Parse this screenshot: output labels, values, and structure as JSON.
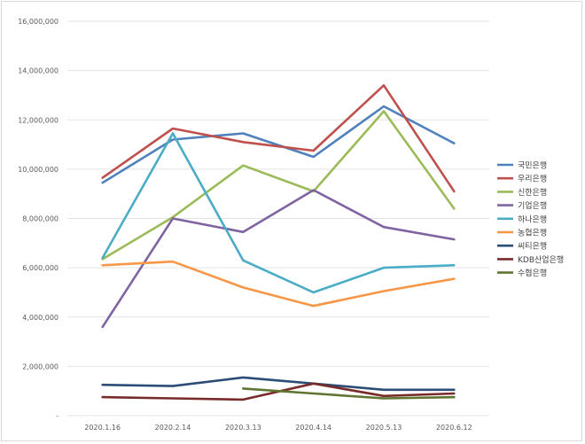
{
  "chart_data": {
    "type": "line",
    "title": "",
    "xlabel": "",
    "ylabel": "",
    "ylim": [
      0,
      16000000
    ],
    "y_ticks": [
      "-",
      "2,000,000",
      "4,000,000",
      "6,000,000",
      "8,000,000",
      "10,000,000",
      "12,000,000",
      "14,000,000",
      "16,000,000"
    ],
    "categories": [
      "2020.1.16",
      "2020.2.14",
      "2020.3.13",
      "2020.4.14",
      "2020.5.13",
      "2020.6.12"
    ],
    "grid": true,
    "legend_position": "right",
    "series": [
      {
        "name": "국민은행",
        "color": "#4f81bd",
        "values": [
          9450000,
          11200000,
          11450000,
          10500000,
          12550000,
          11050000
        ]
      },
      {
        "name": "우리은행",
        "color": "#c0504d",
        "values": [
          9650000,
          11650000,
          11100000,
          10750000,
          13400000,
          9100000
        ]
      },
      {
        "name": "신한은행",
        "color": "#9bbb59",
        "values": [
          6350000,
          8050000,
          10150000,
          9100000,
          12350000,
          8400000
        ]
      },
      {
        "name": "기업은행",
        "color": "#8064a2",
        "values": [
          3600000,
          8000000,
          7450000,
          9150000,
          7650000,
          7150000
        ]
      },
      {
        "name": "하나은행",
        "color": "#4bacc6",
        "values": [
          6400000,
          11450000,
          6300000,
          5000000,
          6000000,
          6100000
        ]
      },
      {
        "name": "농협은행",
        "color": "#f79646",
        "values": [
          6100000,
          6250000,
          5200000,
          4450000,
          5050000,
          5550000
        ]
      },
      {
        "name": "씨티은행",
        "color": "#2c4d75",
        "values": [
          1250000,
          1200000,
          1550000,
          1300000,
          1050000,
          1050000
        ]
      },
      {
        "name": "KDB산업은행",
        "color": "#772c2a",
        "values": [
          750000,
          700000,
          650000,
          1300000,
          800000,
          900000
        ]
      },
      {
        "name": "수협은행",
        "color": "#5f7530",
        "values": [
          null,
          null,
          1100000,
          900000,
          700000,
          750000
        ]
      }
    ]
  }
}
